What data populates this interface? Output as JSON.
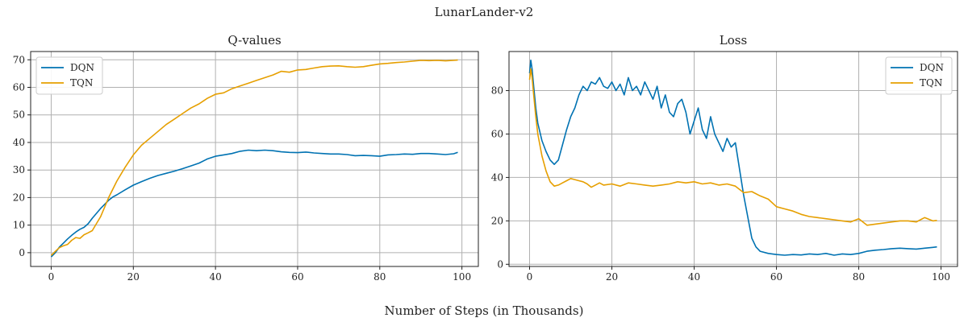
{
  "figure": {
    "suptitle": "LunarLander-v2",
    "supxlabel": "Number of Steps (in Thousands)"
  },
  "colors": {
    "DQN": "#0072B2",
    "TQN": "#E69F00"
  },
  "chart_data": [
    {
      "type": "line",
      "title": "Q-values",
      "xlabel": "",
      "ylabel": "",
      "xlim": [
        -5,
        104
      ],
      "ylim": [
        -5,
        73
      ],
      "xticks": [
        0,
        20,
        40,
        60,
        80,
        100
      ],
      "yticks": [
        0,
        10,
        20,
        30,
        40,
        50,
        60,
        70
      ],
      "grid": true,
      "legend": "top-left",
      "series": [
        {
          "name": "DQN",
          "x": [
            0,
            1,
            2,
            3,
            4,
            5,
            6,
            7,
            8,
            9,
            10,
            12,
            14,
            15,
            16,
            18,
            20,
            22,
            24,
            26,
            28,
            30,
            32,
            34,
            36,
            38,
            40,
            42,
            44,
            46,
            48,
            50,
            52,
            54,
            56,
            58,
            60,
            62,
            64,
            66,
            68,
            70,
            72,
            74,
            76,
            78,
            80,
            82,
            84,
            86,
            88,
            90,
            92,
            94,
            96,
            98,
            99
          ],
          "y": [
            -1.5,
            0,
            2,
            3.5,
            5,
            6.3,
            7.5,
            8.5,
            9.2,
            10.5,
            12.5,
            16,
            19,
            20.2,
            21,
            22.8,
            24.5,
            25.8,
            27,
            28,
            28.8,
            29.6,
            30.5,
            31.5,
            32.5,
            34,
            35,
            35.5,
            36,
            36.8,
            37.2,
            37,
            37.2,
            37,
            36.6,
            36.4,
            36.3,
            36.5,
            36.2,
            36,
            35.8,
            35.8,
            35.6,
            35.2,
            35.3,
            35.2,
            35,
            35.5,
            35.6,
            35.8,
            35.7,
            36,
            36,
            35.8,
            35.6,
            35.9,
            36.4
          ]
        },
        {
          "name": "TQN",
          "x": [
            0,
            1,
            2,
            3,
            4,
            5,
            6,
            7,
            8,
            9,
            10,
            11,
            12,
            13,
            14,
            16,
            18,
            20,
            22,
            24,
            26,
            28,
            30,
            32,
            34,
            36,
            38,
            40,
            42,
            44,
            46,
            48,
            50,
            52,
            54,
            56,
            58,
            60,
            62,
            64,
            66,
            68,
            70,
            72,
            74,
            76,
            78,
            80,
            82,
            84,
            86,
            88,
            90,
            92,
            94,
            96,
            98,
            99
          ],
          "y": [
            -1,
            0.5,
            1.8,
            2.5,
            3,
            4.5,
            5.5,
            5.2,
            6.5,
            7.2,
            8,
            10.5,
            13,
            16.5,
            20,
            26,
            31,
            35.5,
            39,
            41.5,
            44,
            46.5,
            48.5,
            50.5,
            52.5,
            54,
            56,
            57.5,
            58,
            59.5,
            60.5,
            61.5,
            62.5,
            63.5,
            64.5,
            65.8,
            65.5,
            66.3,
            66.5,
            67,
            67.5,
            67.7,
            67.8,
            67.5,
            67.3,
            67.5,
            68,
            68.5,
            68.7,
            69,
            69.2,
            69.5,
            69.8,
            69.7,
            69.8,
            69.6,
            69.8,
            69.9
          ]
        }
      ]
    },
    {
      "type": "line",
      "title": "Loss",
      "xlabel": "",
      "ylabel": "",
      "xlim": [
        -5,
        104
      ],
      "ylim": [
        -1,
        98
      ],
      "xticks": [
        0,
        20,
        40,
        60,
        80,
        100
      ],
      "yticks": [
        0,
        20,
        40,
        60,
        80
      ],
      "grid": true,
      "legend": "top-right",
      "series": [
        {
          "name": "DQN",
          "x": [
            0,
            0.3,
            0.6,
            1,
            1.5,
            2,
            3,
            4,
            5,
            6,
            7,
            8,
            9,
            10,
            11,
            12,
            13,
            14,
            15,
            16,
            17,
            18,
            19,
            20,
            21,
            22,
            23,
            24,
            25,
            26,
            27,
            28,
            29,
            30,
            31,
            32,
            33,
            34,
            35,
            36,
            37,
            38,
            39,
            40,
            41,
            42,
            43,
            44,
            45,
            46,
            47,
            48,
            49,
            50,
            51,
            52,
            53,
            54,
            55,
            56,
            58,
            60,
            62,
            64,
            66,
            68,
            70,
            72,
            74,
            76,
            78,
            80,
            82,
            84,
            86,
            88,
            90,
            92,
            94,
            96,
            98,
            99
          ],
          "y": [
            88,
            94,
            90,
            82,
            72,
            65,
            57,
            52,
            48,
            46,
            48,
            55,
            62,
            68,
            72,
            78,
            82,
            80,
            84,
            83,
            86,
            82,
            81,
            84,
            80,
            83,
            78,
            86,
            80,
            82,
            78,
            84,
            80,
            76,
            82,
            72,
            78,
            70,
            68,
            74,
            76,
            70,
            60,
            66,
            72,
            62,
            58,
            68,
            60,
            56,
            52,
            58,
            54,
            56,
            44,
            32,
            22,
            12,
            8,
            6,
            5,
            4.5,
            4.2,
            4.5,
            4.3,
            4.8,
            4.5,
            5,
            4.2,
            4.8,
            4.5,
            5,
            6,
            6.5,
            6.8,
            7.2,
            7.4,
            7.2,
            7,
            7.4,
            7.8,
            8
          ]
        },
        {
          "name": "TQN",
          "x": [
            0,
            0.3,
            0.6,
            1,
            1.5,
            2,
            3,
            4,
            5,
            6,
            7,
            8,
            9,
            10,
            11,
            12,
            13,
            14,
            15,
            16,
            17,
            18,
            20,
            22,
            24,
            26,
            28,
            30,
            32,
            34,
            36,
            38,
            40,
            42,
            44,
            46,
            48,
            50,
            52,
            54,
            56,
            58,
            60,
            62,
            64,
            66,
            68,
            70,
            72,
            74,
            76,
            78,
            80,
            82,
            84,
            86,
            88,
            90,
            92,
            94,
            96,
            98,
            99
          ],
          "y": [
            85,
            90,
            86,
            78,
            68,
            60,
            50,
            43,
            38,
            36,
            36.5,
            37.5,
            38.5,
            39.5,
            39,
            38.5,
            38,
            37,
            35.5,
            36.5,
            37.5,
            36.5,
            37,
            36,
            37.5,
            37,
            36.5,
            36,
            36.5,
            37,
            38,
            37.5,
            38,
            37,
            37.5,
            36.5,
            37,
            36,
            33,
            33.5,
            31.5,
            30,
            26.5,
            25.5,
            24.5,
            23,
            22,
            21.5,
            21,
            20.5,
            20,
            19.5,
            21,
            18,
            18.5,
            19,
            19.5,
            20,
            20,
            19.5,
            21.5,
            20,
            20.2
          ]
        }
      ]
    }
  ]
}
